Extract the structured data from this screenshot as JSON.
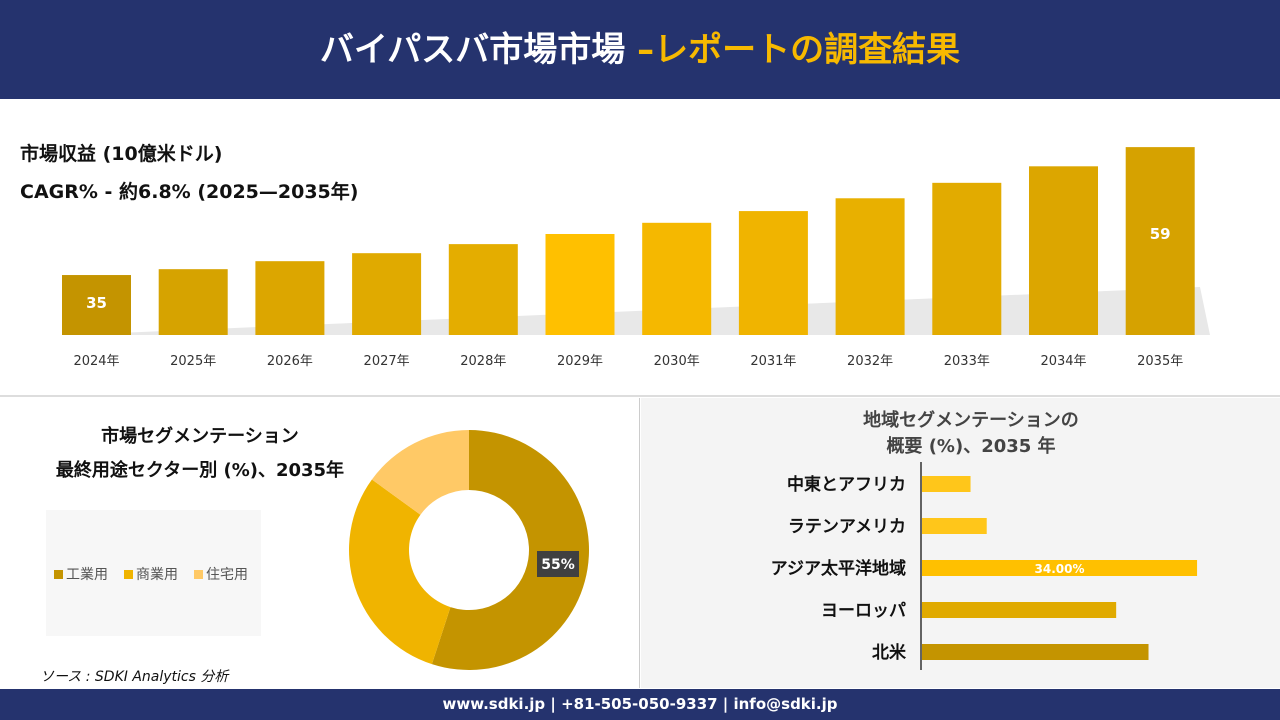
{
  "header": {
    "title_main": "バイパスバ市場市場 ",
    "title_accent": "–レポートの調査結果"
  },
  "top": {
    "line1": "市場収益 (10億米ドル)",
    "line2": "CAGR% - 約6.8% (2025—2035年)"
  },
  "left": {
    "title1": "市場セグメンテーション",
    "title2": "最終用途セクター別 (%)、2035年",
    "source": "ソース : SDKI Analytics 分析"
  },
  "right": {
    "title1": "地域セグメンテーションの",
    "title2": "概要 (%)、2035 年"
  },
  "footer": {
    "text": "www.sdki.jp | +81-505-050-9337 | info@sdki.jp"
  },
  "colors": {
    "navy": "#25336e",
    "dark_gold": "#c49400",
    "gold": "#e0aa00",
    "yellow": "#ffc000",
    "light": "#ffc966"
  },
  "chart_data": [
    {
      "type": "bar",
      "categories": [
        "2024年",
        "2025年",
        "2026年",
        "2027年",
        "2028年",
        "2029年",
        "2030年",
        "2031年",
        "2032年",
        "2033年",
        "2034年",
        "2035年"
      ],
      "values": [
        35,
        36.1,
        37.6,
        39.1,
        40.8,
        42.7,
        44.8,
        47.0,
        49.4,
        52.3,
        55.4,
        59
      ],
      "data_labels": {
        "0": "35",
        "11": "59"
      },
      "ylabel": "",
      "grid": false
    },
    {
      "type": "pie",
      "variant": "donut",
      "categories": [
        "工業用",
        "商業用",
        "住宅用"
      ],
      "values": [
        55,
        30,
        15
      ],
      "data_labels": {
        "0": "55%"
      },
      "legend": "left",
      "colors": [
        "#c49400",
        "#f0b400",
        "#ffc966"
      ]
    },
    {
      "type": "bar",
      "orientation": "horizontal",
      "categories": [
        "中東とアフリカ",
        "ラテンアメリカ",
        "アジア太平洋地域",
        "ヨーロッパ",
        "北米"
      ],
      "values": [
        6,
        8,
        34,
        24,
        28
      ],
      "data_labels": {
        "2": "34.00%"
      },
      "colors": [
        "#ffc61a",
        "#ffc61a",
        "#ffc000",
        "#e0aa00",
        "#c49400"
      ]
    }
  ]
}
